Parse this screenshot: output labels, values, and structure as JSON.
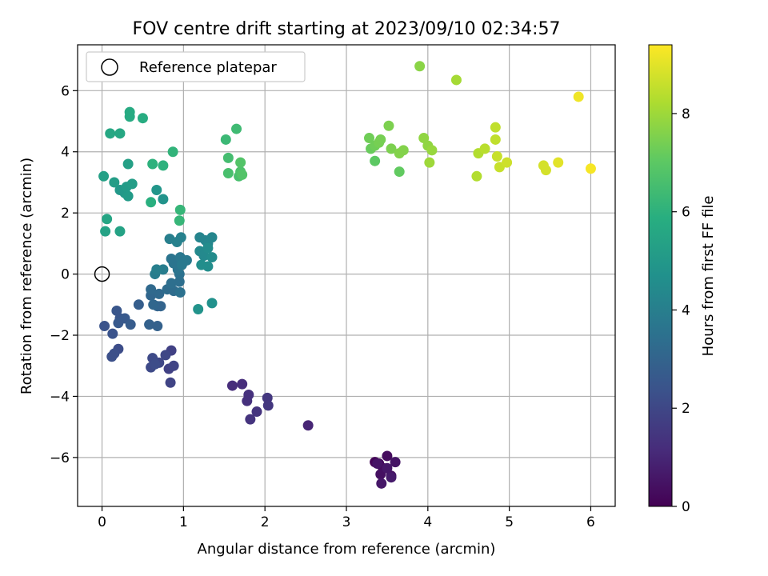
{
  "chart_data": {
    "type": "scatter",
    "title": "FOV centre drift starting at 2023/09/10 02:34:57",
    "xlabel": "Angular distance from reference (arcmin)",
    "ylabel": "Rotation from reference (arcmin)",
    "xlim": [
      -0.3,
      6.3
    ],
    "ylim": [
      -7.6,
      7.5
    ],
    "xticks": [
      0,
      1,
      2,
      3,
      4,
      5,
      6
    ],
    "yticks": [
      -6,
      -4,
      -2,
      0,
      2,
      4,
      6
    ],
    "xtick_labels": [
      "0",
      "1",
      "2",
      "3",
      "4",
      "5",
      "6"
    ],
    "ytick_labels": [
      "−6",
      "−4",
      "−2",
      "0",
      "2",
      "4",
      "6"
    ],
    "grid": true,
    "legend": {
      "position": "upper-left",
      "label": "Reference platepar"
    },
    "reference_point": {
      "x": 0,
      "y": 0
    },
    "colormap": "viridis",
    "colorbar": {
      "label": "Hours from first FF file",
      "range": [
        0,
        9.4
      ],
      "ticks": [
        0,
        2,
        4,
        6,
        8
      ],
      "tick_labels": [
        "0",
        "2",
        "4",
        "6",
        "8"
      ]
    },
    "colors": {
      "viridis": [
        "#440154",
        "#472d7b",
        "#3b528b",
        "#2c728e",
        "#21918c",
        "#28ae80",
        "#5ec962",
        "#addc30",
        "#fde725"
      ]
    },
    "points": [
      {
        "x": 3.35,
        "y": -6.15,
        "h": 0.1
      },
      {
        "x": 3.4,
        "y": -6.2,
        "h": 0.2
      },
      {
        "x": 3.5,
        "y": -5.95,
        "h": 0.3
      },
      {
        "x": 3.45,
        "y": -6.35,
        "h": 0.3
      },
      {
        "x": 3.55,
        "y": -6.6,
        "h": 0.4
      },
      {
        "x": 3.42,
        "y": -6.55,
        "h": 0.4
      },
      {
        "x": 3.6,
        "y": -6.15,
        "h": 0.5
      },
      {
        "x": 3.38,
        "y": -6.2,
        "h": 0.5
      },
      {
        "x": 3.5,
        "y": -6.35,
        "h": 0.6
      },
      {
        "x": 3.43,
        "y": -6.85,
        "h": 0.6
      },
      {
        "x": 3.55,
        "y": -6.65,
        "h": 0.7
      },
      {
        "x": 2.53,
        "y": -4.95,
        "h": 1.0
      },
      {
        "x": 1.6,
        "y": -3.65,
        "h": 1.2
      },
      {
        "x": 1.72,
        "y": -3.6,
        "h": 1.2
      },
      {
        "x": 1.8,
        "y": -3.95,
        "h": 1.3
      },
      {
        "x": 1.78,
        "y": -4.15,
        "h": 1.3
      },
      {
        "x": 1.82,
        "y": -4.75,
        "h": 1.4
      },
      {
        "x": 1.9,
        "y": -4.5,
        "h": 1.4
      },
      {
        "x": 2.03,
        "y": -4.05,
        "h": 1.5
      },
      {
        "x": 2.04,
        "y": -4.3,
        "h": 1.5
      },
      {
        "x": 0.85,
        "y": -2.5,
        "h": 1.8
      },
      {
        "x": 0.82,
        "y": -3.1,
        "h": 1.8
      },
      {
        "x": 0.88,
        "y": -3.0,
        "h": 1.9
      },
      {
        "x": 0.84,
        "y": -3.55,
        "h": 1.9
      },
      {
        "x": 0.78,
        "y": -2.65,
        "h": 2.0
      },
      {
        "x": 0.7,
        "y": -2.9,
        "h": 2.0
      },
      {
        "x": 0.62,
        "y": -2.75,
        "h": 2.1
      },
      {
        "x": 0.6,
        "y": -3.05,
        "h": 2.1
      },
      {
        "x": 0.65,
        "y": -2.95,
        "h": 2.2
      },
      {
        "x": 0.2,
        "y": -2.45,
        "h": 2.2
      },
      {
        "x": 0.15,
        "y": -2.6,
        "h": 2.3
      },
      {
        "x": 0.12,
        "y": -2.7,
        "h": 2.3
      },
      {
        "x": 0.03,
        "y": -1.7,
        "h": 2.4
      },
      {
        "x": 0.13,
        "y": -1.95,
        "h": 2.4
      },
      {
        "x": 0.18,
        "y": -1.2,
        "h": 2.5
      },
      {
        "x": 0.22,
        "y": -1.45,
        "h": 2.5
      },
      {
        "x": 0.2,
        "y": -1.6,
        "h": 2.6
      },
      {
        "x": 0.28,
        "y": -1.45,
        "h": 2.6
      },
      {
        "x": 0.35,
        "y": -1.65,
        "h": 2.7
      },
      {
        "x": 0.45,
        "y": -1.0,
        "h": 2.8
      },
      {
        "x": 0.58,
        "y": -1.65,
        "h": 2.9
      },
      {
        "x": 0.68,
        "y": -1.7,
        "h": 2.9
      },
      {
        "x": 0.68,
        "y": -1.05,
        "h": 3.0
      },
      {
        "x": 0.72,
        "y": -1.05,
        "h": 3.0
      },
      {
        "x": 0.63,
        "y": -1.0,
        "h": 3.1
      },
      {
        "x": 0.6,
        "y": -0.7,
        "h": 3.1
      },
      {
        "x": 0.6,
        "y": -0.5,
        "h": 3.2
      },
      {
        "x": 0.7,
        "y": -0.65,
        "h": 3.2
      },
      {
        "x": 0.8,
        "y": -0.5,
        "h": 3.3
      },
      {
        "x": 0.88,
        "y": -0.55,
        "h": 3.3
      },
      {
        "x": 0.85,
        "y": -0.3,
        "h": 3.4
      },
      {
        "x": 0.95,
        "y": -0.25,
        "h": 3.4
      },
      {
        "x": 0.96,
        "y": -0.6,
        "h": 3.5
      },
      {
        "x": 0.95,
        "y": 0.0,
        "h": 3.5
      },
      {
        "x": 0.93,
        "y": 0.15,
        "h": 3.6
      },
      {
        "x": 0.88,
        "y": 0.35,
        "h": 3.6
      },
      {
        "x": 0.85,
        "y": 0.5,
        "h": 3.6
      },
      {
        "x": 0.96,
        "y": 0.55,
        "h": 3.7
      },
      {
        "x": 1.0,
        "y": 0.4,
        "h": 3.7
      },
      {
        "x": 1.04,
        "y": 0.45,
        "h": 3.8
      },
      {
        "x": 0.98,
        "y": 0.3,
        "h": 3.8
      },
      {
        "x": 0.75,
        "y": 0.15,
        "h": 3.9
      },
      {
        "x": 0.65,
        "y": 0.0,
        "h": 3.9
      },
      {
        "x": 0.67,
        "y": 0.15,
        "h": 4.0
      },
      {
        "x": 0.83,
        "y": 1.15,
        "h": 4.0
      },
      {
        "x": 0.92,
        "y": 1.05,
        "h": 4.1
      },
      {
        "x": 0.97,
        "y": 1.2,
        "h": 4.1
      },
      {
        "x": 1.2,
        "y": 1.2,
        "h": 4.2
      },
      {
        "x": 1.27,
        "y": 1.1,
        "h": 4.2
      },
      {
        "x": 1.35,
        "y": 1.2,
        "h": 4.3
      },
      {
        "x": 1.3,
        "y": 1.0,
        "h": 4.3
      },
      {
        "x": 1.2,
        "y": 0.75,
        "h": 4.4
      },
      {
        "x": 1.25,
        "y": 0.6,
        "h": 4.4
      },
      {
        "x": 1.3,
        "y": 0.85,
        "h": 4.5
      },
      {
        "x": 1.35,
        "y": 0.55,
        "h": 4.5
      },
      {
        "x": 1.22,
        "y": 0.3,
        "h": 4.6
      },
      {
        "x": 1.3,
        "y": 0.25,
        "h": 4.6
      },
      {
        "x": 1.35,
        "y": -0.95,
        "h": 4.7
      },
      {
        "x": 1.18,
        "y": -1.15,
        "h": 4.8
      },
      {
        "x": 0.75,
        "y": 2.45,
        "h": 4.8
      },
      {
        "x": 0.67,
        "y": 2.75,
        "h": 4.9
      },
      {
        "x": 0.22,
        "y": 2.75,
        "h": 5.0
      },
      {
        "x": 0.28,
        "y": 2.65,
        "h": 5.0
      },
      {
        "x": 0.32,
        "y": 2.55,
        "h": 5.1
      },
      {
        "x": 0.3,
        "y": 2.85,
        "h": 5.1
      },
      {
        "x": 0.37,
        "y": 2.95,
        "h": 5.2
      },
      {
        "x": 0.15,
        "y": 3.0,
        "h": 5.2
      },
      {
        "x": 0.02,
        "y": 3.2,
        "h": 5.3
      },
      {
        "x": 0.32,
        "y": 3.6,
        "h": 5.3
      },
      {
        "x": 0.22,
        "y": 1.4,
        "h": 5.4
      },
      {
        "x": 0.04,
        "y": 1.4,
        "h": 5.4
      },
      {
        "x": 0.06,
        "y": 1.8,
        "h": 5.5
      },
      {
        "x": 0.1,
        "y": 4.6,
        "h": 5.6
      },
      {
        "x": 0.22,
        "y": 4.6,
        "h": 5.6
      },
      {
        "x": 0.34,
        "y": 5.15,
        "h": 5.7
      },
      {
        "x": 0.34,
        "y": 5.3,
        "h": 5.7
      },
      {
        "x": 0.5,
        "y": 5.1,
        "h": 5.8
      },
      {
        "x": 0.6,
        "y": 2.35,
        "h": 5.9
      },
      {
        "x": 0.62,
        "y": 3.6,
        "h": 6.0
      },
      {
        "x": 0.75,
        "y": 3.55,
        "h": 6.0
      },
      {
        "x": 0.87,
        "y": 4.0,
        "h": 6.1
      },
      {
        "x": 0.95,
        "y": 1.75,
        "h": 6.2
      },
      {
        "x": 0.96,
        "y": 2.1,
        "h": 6.2
      },
      {
        "x": 1.52,
        "y": 4.4,
        "h": 6.3
      },
      {
        "x": 1.65,
        "y": 4.75,
        "h": 6.4
      },
      {
        "x": 1.55,
        "y": 3.8,
        "h": 6.5
      },
      {
        "x": 1.55,
        "y": 3.3,
        "h": 6.6
      },
      {
        "x": 1.68,
        "y": 3.2,
        "h": 6.6
      },
      {
        "x": 1.7,
        "y": 3.35,
        "h": 6.7
      },
      {
        "x": 1.7,
        "y": 3.65,
        "h": 6.8
      },
      {
        "x": 1.72,
        "y": 3.25,
        "h": 6.8
      },
      {
        "x": 3.35,
        "y": 3.7,
        "h": 7.0
      },
      {
        "x": 3.65,
        "y": 3.35,
        "h": 7.1
      },
      {
        "x": 3.3,
        "y": 4.1,
        "h": 7.2
      },
      {
        "x": 3.28,
        "y": 4.45,
        "h": 7.3
      },
      {
        "x": 3.35,
        "y": 4.2,
        "h": 7.3
      },
      {
        "x": 3.4,
        "y": 4.3,
        "h": 7.4
      },
      {
        "x": 3.42,
        "y": 4.4,
        "h": 7.4
      },
      {
        "x": 3.52,
        "y": 4.85,
        "h": 7.5
      },
      {
        "x": 3.55,
        "y": 4.1,
        "h": 7.5
      },
      {
        "x": 3.65,
        "y": 3.95,
        "h": 7.6
      },
      {
        "x": 3.7,
        "y": 4.05,
        "h": 7.6
      },
      {
        "x": 3.9,
        "y": 6.8,
        "h": 7.7
      },
      {
        "x": 3.95,
        "y": 4.45,
        "h": 7.8
      },
      {
        "x": 4.0,
        "y": 4.2,
        "h": 7.8
      },
      {
        "x": 4.05,
        "y": 4.05,
        "h": 7.9
      },
      {
        "x": 4.02,
        "y": 3.65,
        "h": 8.0
      },
      {
        "x": 4.35,
        "y": 6.35,
        "h": 8.1
      },
      {
        "x": 4.6,
        "y": 3.2,
        "h": 8.3
      },
      {
        "x": 4.62,
        "y": 3.95,
        "h": 8.3
      },
      {
        "x": 4.7,
        "y": 4.1,
        "h": 8.4
      },
      {
        "x": 4.83,
        "y": 4.8,
        "h": 8.5
      },
      {
        "x": 4.83,
        "y": 4.4,
        "h": 8.5
      },
      {
        "x": 4.85,
        "y": 3.85,
        "h": 8.6
      },
      {
        "x": 4.88,
        "y": 3.5,
        "h": 8.6
      },
      {
        "x": 4.97,
        "y": 3.65,
        "h": 8.7
      },
      {
        "x": 5.42,
        "y": 3.55,
        "h": 8.8
      },
      {
        "x": 5.45,
        "y": 3.4,
        "h": 8.8
      },
      {
        "x": 5.6,
        "y": 3.65,
        "h": 9.0
      },
      {
        "x": 5.85,
        "y": 5.8,
        "h": 9.2
      },
      {
        "x": 6.0,
        "y": 3.45,
        "h": 9.3
      }
    ]
  }
}
